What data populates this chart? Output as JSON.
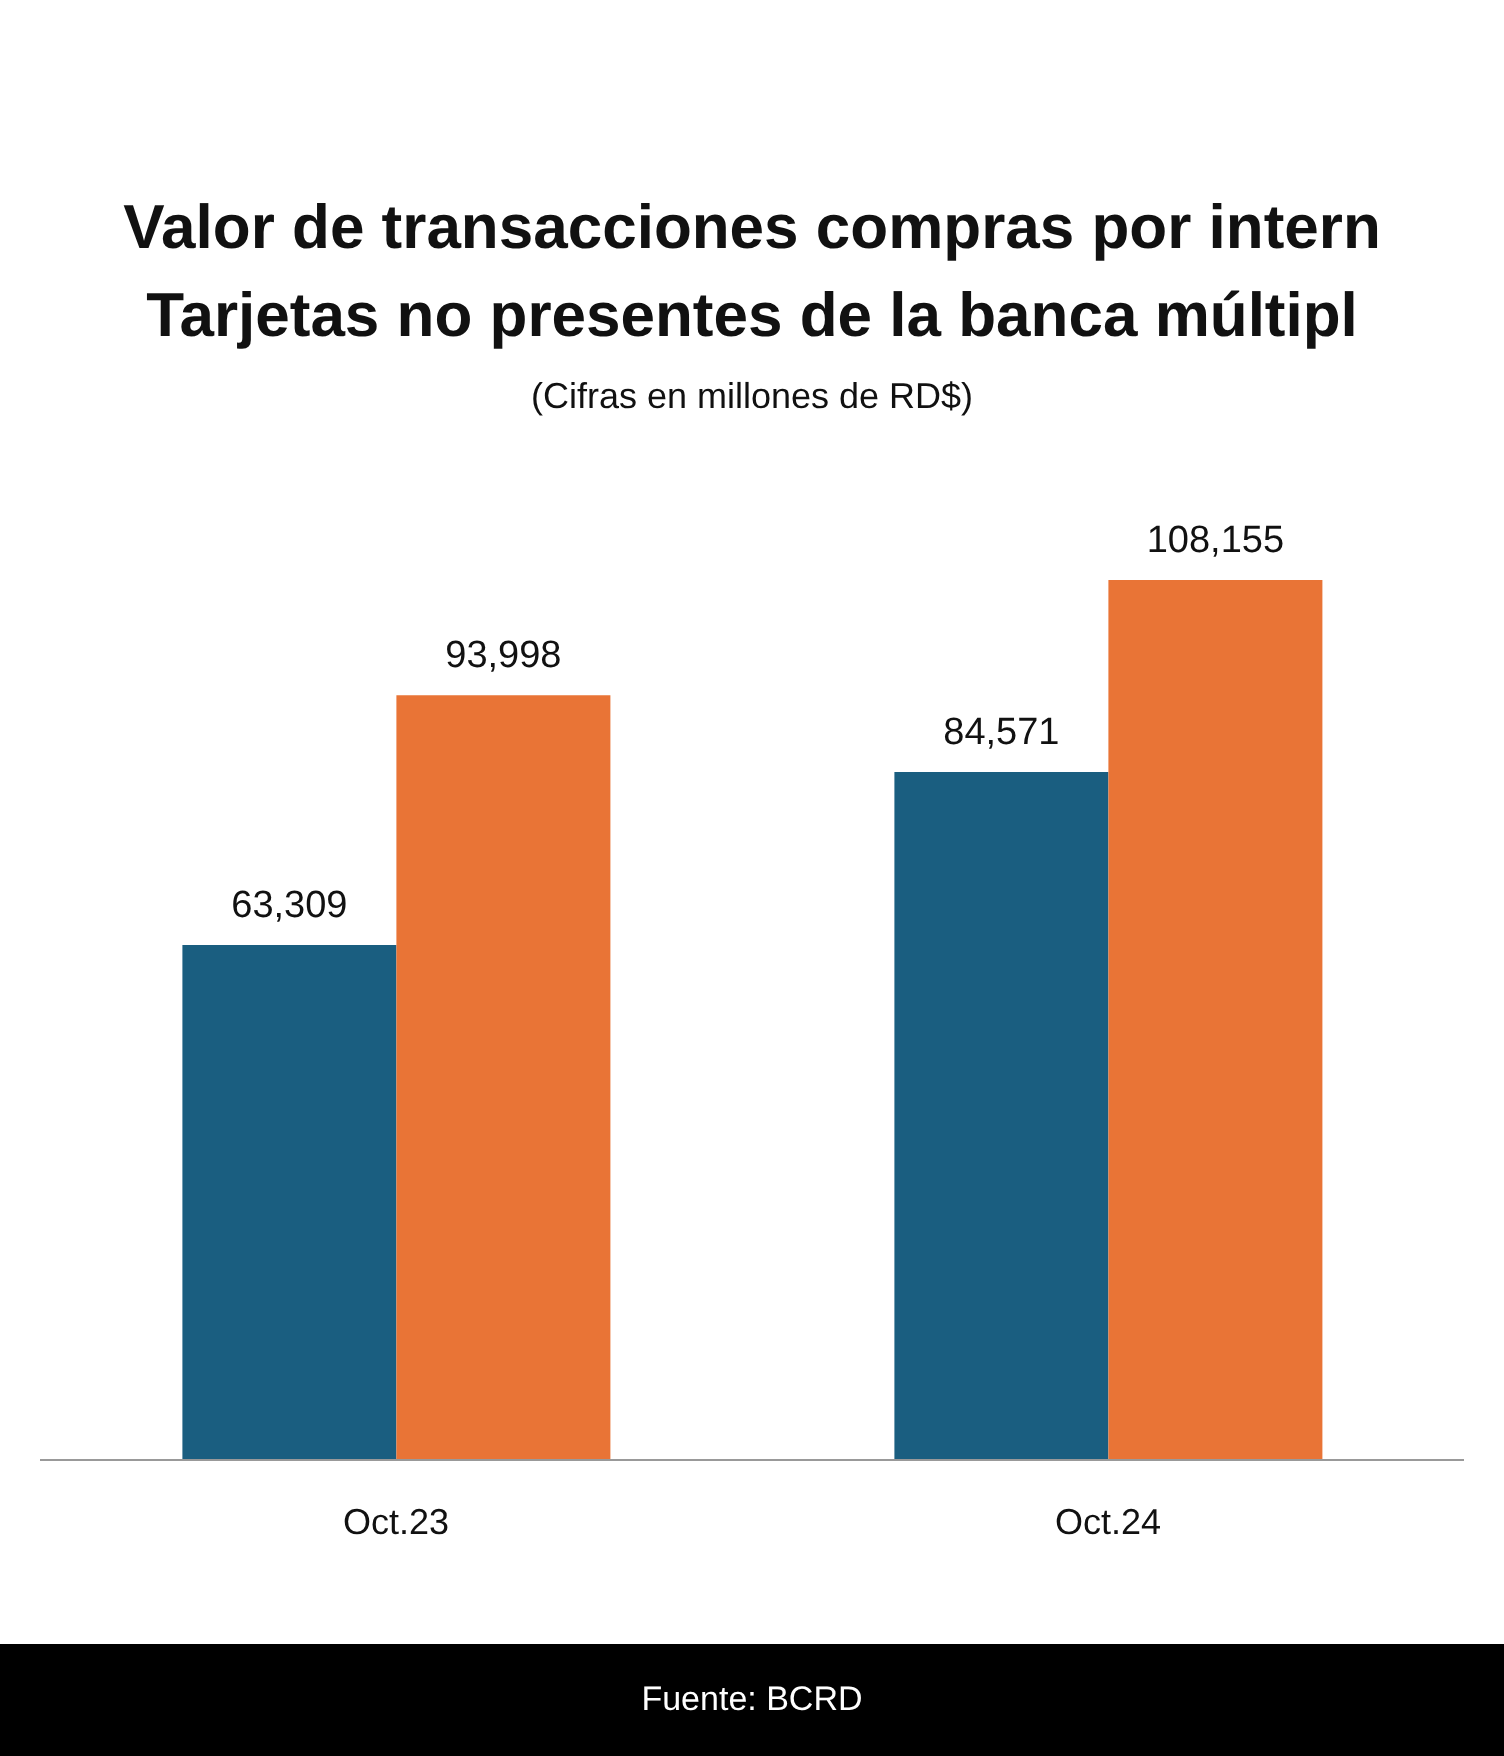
{
  "chart_data": {
    "type": "bar",
    "title": "Valor de transacciones compras por intern\nTarjetas no presentes de la banca múltipl",
    "subtitle": "(Cifras en millones de RD$)",
    "categories": [
      "Oct.23",
      "Oct.24"
    ],
    "series": [
      {
        "color": "#1a5e80",
        "values": [
          63309,
          84571
        ],
        "value_labels": [
          "63,309",
          "84,571"
        ]
      },
      {
        "color": "#e97436",
        "values": [
          93998,
          108155
        ],
        "value_labels": [
          "93,998",
          "108,155"
        ]
      }
    ],
    "legend": false,
    "grid": false,
    "annotations": [
      "Fuente: BCRD"
    ]
  }
}
